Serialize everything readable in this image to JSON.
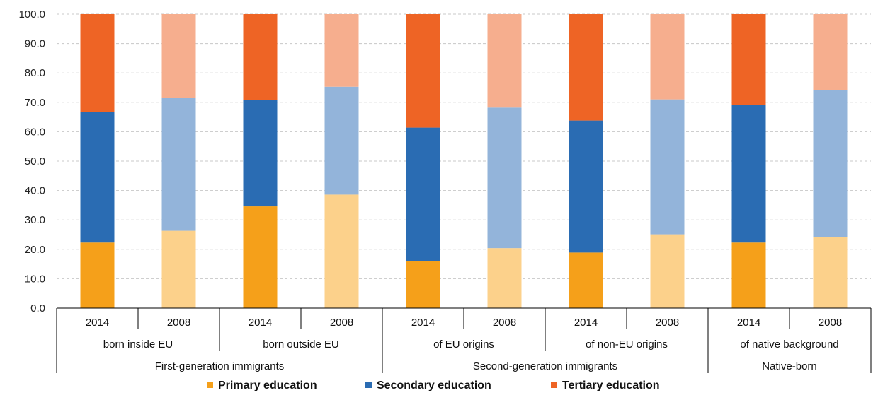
{
  "chart_data": {
    "type": "bar",
    "stacked": true,
    "ylim": [
      0,
      100
    ],
    "yticks": [
      "0.0",
      "10.0",
      "20.0",
      "30.0",
      "40.0",
      "50.0",
      "60.0",
      "70.0",
      "80.0",
      "90.0",
      "100.0"
    ],
    "grid": true,
    "legend_position": "bottom",
    "categories": [
      "2014",
      "2008",
      "2014",
      "2008",
      "2014",
      "2008",
      "2014",
      "2008",
      "2014",
      "2008"
    ],
    "subgroups": [
      "born inside EU",
      "born outside EU",
      "of EU origins",
      "of non-EU origins",
      "of native background"
    ],
    "groups": [
      "First-generation immigrants",
      "Second-generation immigrants",
      "Native-born"
    ],
    "series": [
      {
        "name": "Primary education",
        "values": [
          22.3,
          26.3,
          34.6,
          38.6,
          16.1,
          20.4,
          18.9,
          25.1,
          22.3,
          24.2
        ]
      },
      {
        "name": "Secondary education",
        "values": [
          44.4,
          45.3,
          36.1,
          36.7,
          45.3,
          47.8,
          44.9,
          45.9,
          46.9,
          50.0
        ]
      },
      {
        "name": "Tertiary education",
        "values": [
          33.3,
          28.4,
          29.3,
          24.7,
          38.6,
          31.8,
          36.2,
          29.0,
          30.8,
          25.8
        ]
      }
    ],
    "colors": {
      "primary_2014": "#F5A01A",
      "primary_2008": "#FCD18B",
      "secondary_2014": "#2A6CB3",
      "secondary_2008": "#93B4DA",
      "tertiary_2014": "#EE6425",
      "tertiary_2008": "#F6AE8E"
    },
    "legend": [
      {
        "label": "Primary education",
        "color": "#F5A01A"
      },
      {
        "label": "Secondary education",
        "color": "#2A6CB3"
      },
      {
        "label": "Tertiary education",
        "color": "#EE6425"
      }
    ]
  }
}
